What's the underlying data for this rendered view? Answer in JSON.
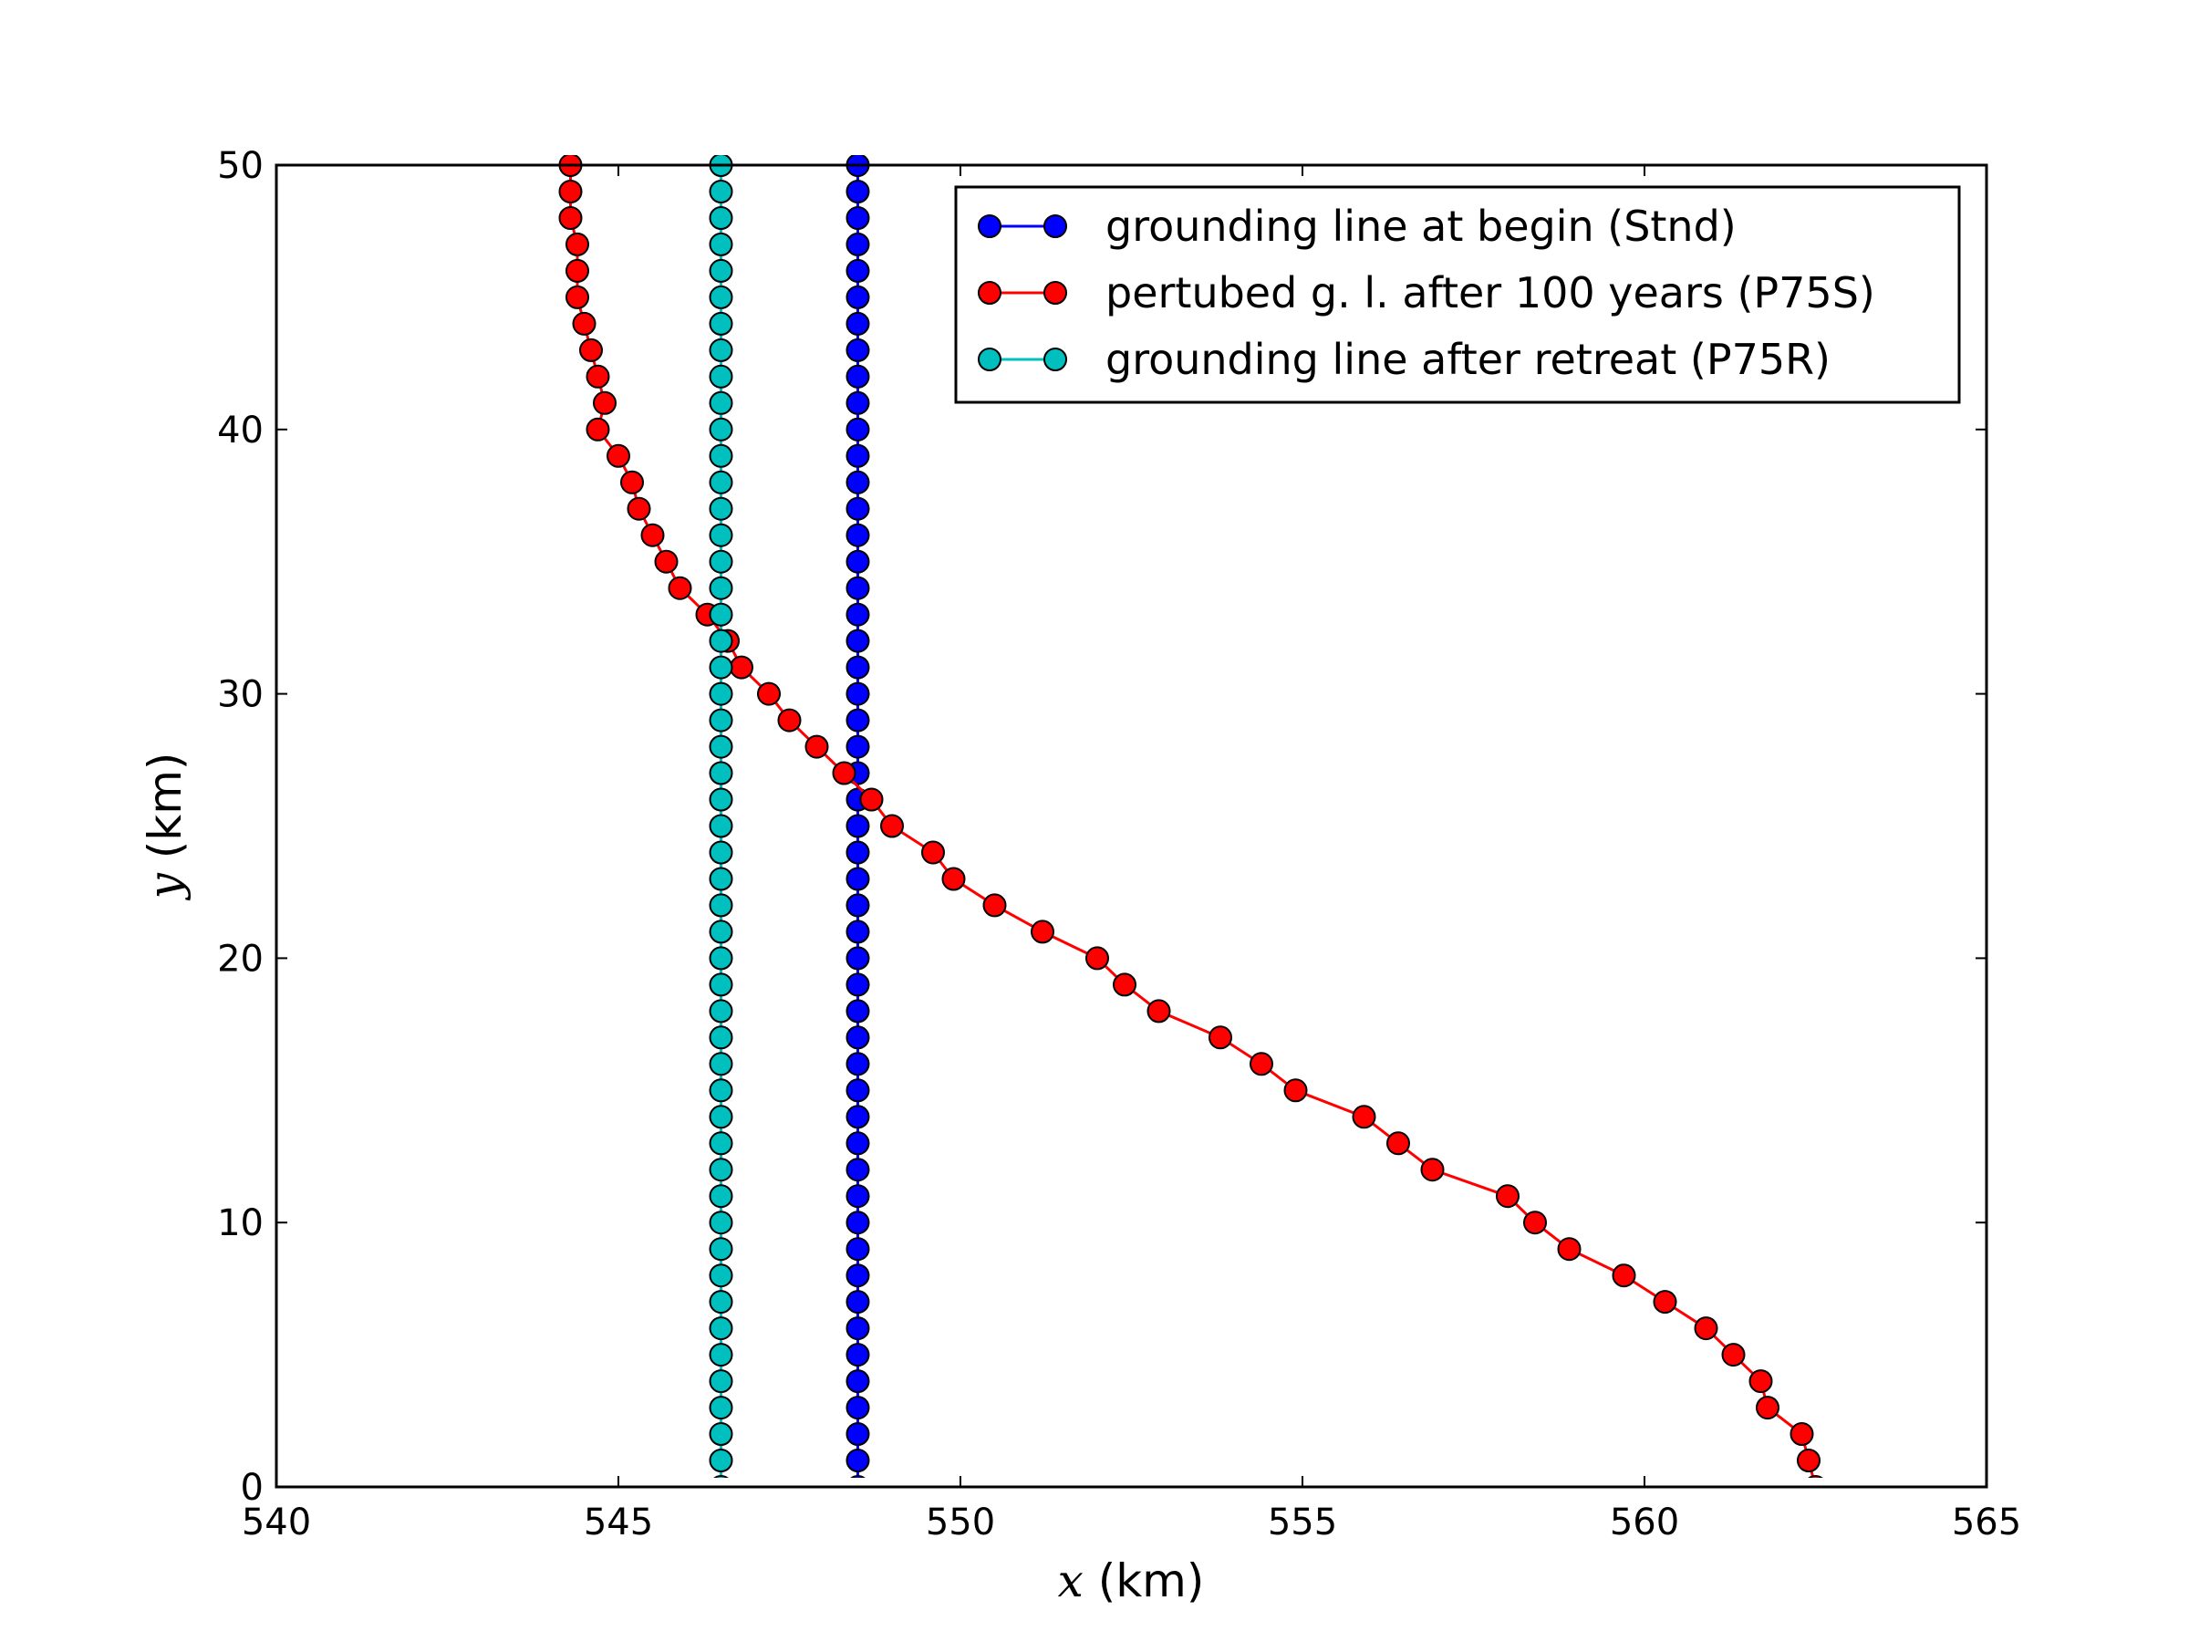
{
  "chart_data": {
    "type": "line",
    "x_axis": {
      "variable": "x",
      "unit": " (km)",
      "range": [
        540,
        565
      ],
      "ticks": [
        540,
        545,
        550,
        555,
        560,
        565
      ]
    },
    "y_axis": {
      "variable": "y",
      "unit": " (km)",
      "range": [
        0,
        50
      ],
      "ticks": [
        0,
        10,
        20,
        30,
        40,
        50
      ]
    },
    "grid": false,
    "legend": {
      "position": "top-right"
    },
    "series": [
      {
        "name": "grounding line at begin (Stnd)",
        "color": "#0000ff",
        "marker": "circle",
        "x": [
          548.5,
          548.5,
          548.5,
          548.5,
          548.5,
          548.5,
          548.5,
          548.5,
          548.5,
          548.5,
          548.5,
          548.5,
          548.5,
          548.5,
          548.5,
          548.5,
          548.5,
          548.5,
          548.5,
          548.5,
          548.5,
          548.5,
          548.5,
          548.5,
          548.5,
          548.5,
          548.5,
          548.5,
          548.5,
          548.5,
          548.5,
          548.5,
          548.5,
          548.5,
          548.5,
          548.5,
          548.5,
          548.5,
          548.5,
          548.5,
          548.5,
          548.5,
          548.5,
          548.5,
          548.5,
          548.5,
          548.5,
          548.5,
          548.5,
          548.5,
          548.5
        ],
        "y": [
          0,
          1,
          2,
          3,
          4,
          5,
          6,
          7,
          8,
          9,
          10,
          11,
          12,
          13,
          14,
          15,
          16,
          17,
          18,
          19,
          20,
          21,
          22,
          23,
          24,
          25,
          26,
          27,
          28,
          29,
          30,
          31,
          32,
          33,
          34,
          35,
          36,
          37,
          38,
          39,
          40,
          41,
          42,
          43,
          44,
          45,
          46,
          47,
          48,
          49,
          50
        ]
      },
      {
        "name": "pertubed g. l. after 100 years (P75S)",
        "color": "#ff0000",
        "marker": "circle",
        "x": [
          562.5,
          562.4,
          562.3,
          561.8,
          561.7,
          561.3,
          560.9,
          560.3,
          559.7,
          558.9,
          558.4,
          558.0,
          556.9,
          556.4,
          555.9,
          554.9,
          554.4,
          553.8,
          552.9,
          552.4,
          552.0,
          551.2,
          550.5,
          549.9,
          549.6,
          549.0,
          548.7,
          548.3,
          547.9,
          547.5,
          547.2,
          546.8,
          546.6,
          546.3,
          545.9,
          545.7,
          545.5,
          545.3,
          545.2,
          545.0,
          544.7,
          544.8,
          544.7,
          544.6,
          544.5,
          544.4,
          544.4,
          544.4,
          544.3,
          544.3,
          544.3
        ],
        "y": [
          0,
          1,
          2,
          3,
          4,
          5,
          6,
          7,
          8,
          9,
          10,
          11,
          12,
          13,
          14,
          15,
          16,
          17,
          18,
          19,
          20,
          21,
          22,
          23,
          24,
          25,
          26,
          27,
          28,
          29,
          30,
          31,
          32,
          33,
          34,
          35,
          36,
          37,
          38,
          39,
          40,
          41,
          42,
          43,
          44,
          45,
          46,
          47,
          48,
          49,
          50
        ]
      },
      {
        "name": "grounding line after retreat (P75R)",
        "color": "#00bfbf",
        "marker": "circle",
        "x": [
          546.5,
          546.5,
          546.5,
          546.5,
          546.5,
          546.5,
          546.5,
          546.5,
          546.5,
          546.5,
          546.5,
          546.5,
          546.5,
          546.5,
          546.5,
          546.5,
          546.5,
          546.5,
          546.5,
          546.5,
          546.5,
          546.5,
          546.5,
          546.5,
          546.5,
          546.5,
          546.5,
          546.5,
          546.5,
          546.5,
          546.5,
          546.5,
          546.5,
          546.5,
          546.5,
          546.5,
          546.5,
          546.5,
          546.5,
          546.5,
          546.5,
          546.5,
          546.5,
          546.5,
          546.5,
          546.5,
          546.5,
          546.5,
          546.5,
          546.5,
          546.5
        ],
        "y": [
          0,
          1,
          2,
          3,
          4,
          5,
          6,
          7,
          8,
          9,
          10,
          11,
          12,
          13,
          14,
          15,
          16,
          17,
          18,
          19,
          20,
          21,
          22,
          23,
          24,
          25,
          26,
          27,
          28,
          29,
          30,
          31,
          32,
          33,
          34,
          35,
          36,
          37,
          38,
          39,
          40,
          41,
          42,
          43,
          44,
          45,
          46,
          47,
          48,
          49,
          50
        ]
      }
    ]
  }
}
